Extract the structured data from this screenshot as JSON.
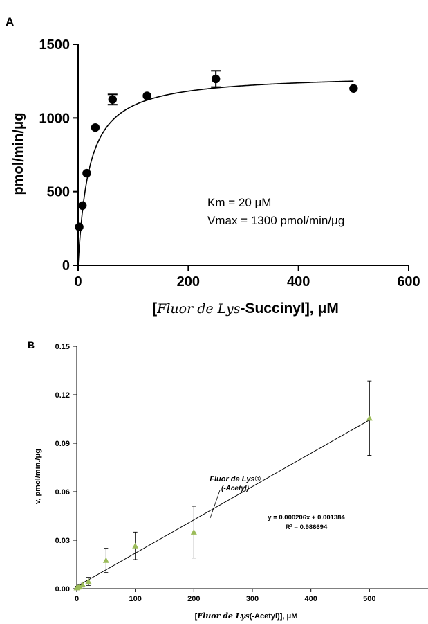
{
  "chart_data": [
    {
      "panel_label": "A",
      "type": "scatter",
      "xlabel_parts": [
        "[",
        "Fluor de Lys",
        "-Succinyl], μM"
      ],
      "ylabel": "pmol/min/μg",
      "xlim": [
        0,
        600
      ],
      "ylim": [
        0,
        1500
      ],
      "xticks": [
        0,
        200,
        400,
        600
      ],
      "yticks": [
        0,
        500,
        1000,
        1500
      ],
      "points": [
        {
          "x": 2,
          "y": 260,
          "err": 0
        },
        {
          "x": 7.8,
          "y": 405,
          "err": 0
        },
        {
          "x": 15.6,
          "y": 625,
          "err": 0
        },
        {
          "x": 31.25,
          "y": 935,
          "err": 0
        },
        {
          "x": 62.5,
          "y": 1125,
          "err": 35
        },
        {
          "x": 125,
          "y": 1150,
          "err": 0
        },
        {
          "x": 250,
          "y": 1265,
          "err": 55
        },
        {
          "x": 500,
          "y": 1200,
          "err": 0
        }
      ],
      "fit": {
        "model": "michaelis-menten",
        "Km": 20,
        "Vmax": 1300,
        "x_range": [
          0,
          500
        ]
      },
      "annotations": [
        "Km = 20 μM",
        "Vmax = 1300 pmol/min/μg"
      ],
      "grid": false,
      "marker_color": "#000000"
    },
    {
      "panel_label": "B",
      "type": "scatter",
      "xlabel_parts": [
        "[",
        "Fluor de Lys",
        "(-Acetyl)], μM"
      ],
      "ylabel": "v, pmol/min./μg",
      "xlim": [
        0,
        600
      ],
      "ylim": [
        0,
        0.15
      ],
      "xticks": [
        0,
        100,
        200,
        300,
        400,
        500
      ],
      "yticks": [
        "0.00",
        "0.03",
        "0.06",
        "0.09",
        "0.12",
        "0.15"
      ],
      "points": [
        {
          "x": 0,
          "y": 0.0005,
          "err": 0.001
        },
        {
          "x": 2.5,
          "y": 0.001,
          "err": 0.001
        },
        {
          "x": 5,
          "y": 0.0015,
          "err": 0.0012
        },
        {
          "x": 10,
          "y": 0.0025,
          "err": 0.0015
        },
        {
          "x": 20,
          "y": 0.0045,
          "err": 0.0025
        },
        {
          "x": 50,
          "y": 0.0175,
          "err": 0.0075
        },
        {
          "x": 100,
          "y": 0.0265,
          "err": 0.0085
        },
        {
          "x": 200,
          "y": 0.035,
          "err": 0.016
        },
        {
          "x": 500,
          "y": 0.1055,
          "err": 0.023
        }
      ],
      "fit": {
        "model": "linear",
        "slope": 0.000206,
        "intercept": 0.001384,
        "x_range": [
          0,
          500
        ]
      },
      "equation": "y = 0.000206x  + 0.001384",
      "r_squared": "R² = 0.986694",
      "compound_label": [
        "Fluor de Lys®",
        "(-Acetyl)"
      ],
      "grid": false,
      "marker_color": "#9bbb59"
    }
  ]
}
